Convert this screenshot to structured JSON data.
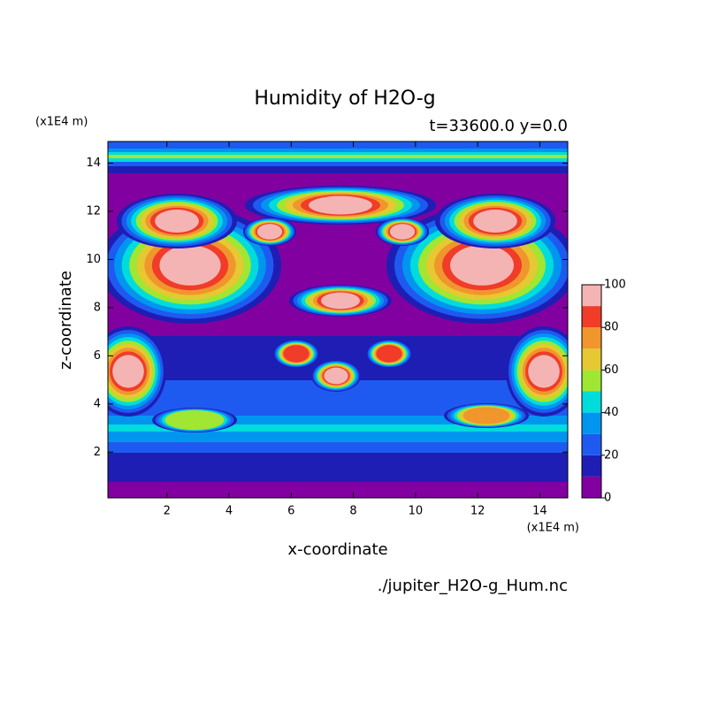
{
  "chart_data": {
    "type": "contour",
    "title": "Humidity of H2O-g",
    "subtitle": "t=33600.0 y=0.0",
    "x_label": "x-coordinate",
    "y_label": "z-coordinate",
    "x_unit": "(x1E4 m)",
    "y_unit": "(x1E4 m)",
    "source": "./jupiter_H2O-g_Hum.nc",
    "xlim": [
      0.1,
      14.9
    ],
    "ylim": [
      0.1,
      14.9
    ],
    "xticks": [
      2,
      4,
      6,
      8,
      10,
      12,
      14
    ],
    "yticks": [
      2,
      4,
      6,
      8,
      10,
      12,
      14
    ],
    "colorbar": {
      "levels": [
        0,
        10,
        20,
        30,
        40,
        50,
        60,
        70,
        80,
        90,
        100
      ],
      "colors": [
        "#8200a0",
        "#1e1eb4",
        "#1e5af0",
        "#0096f0",
        "#00dcdc",
        "#a0e632",
        "#e6c832",
        "#f0962d",
        "#f03c28",
        "#f5b4b4"
      ],
      "ticks": [
        0,
        20,
        40,
        60,
        80,
        100
      ]
    }
  }
}
